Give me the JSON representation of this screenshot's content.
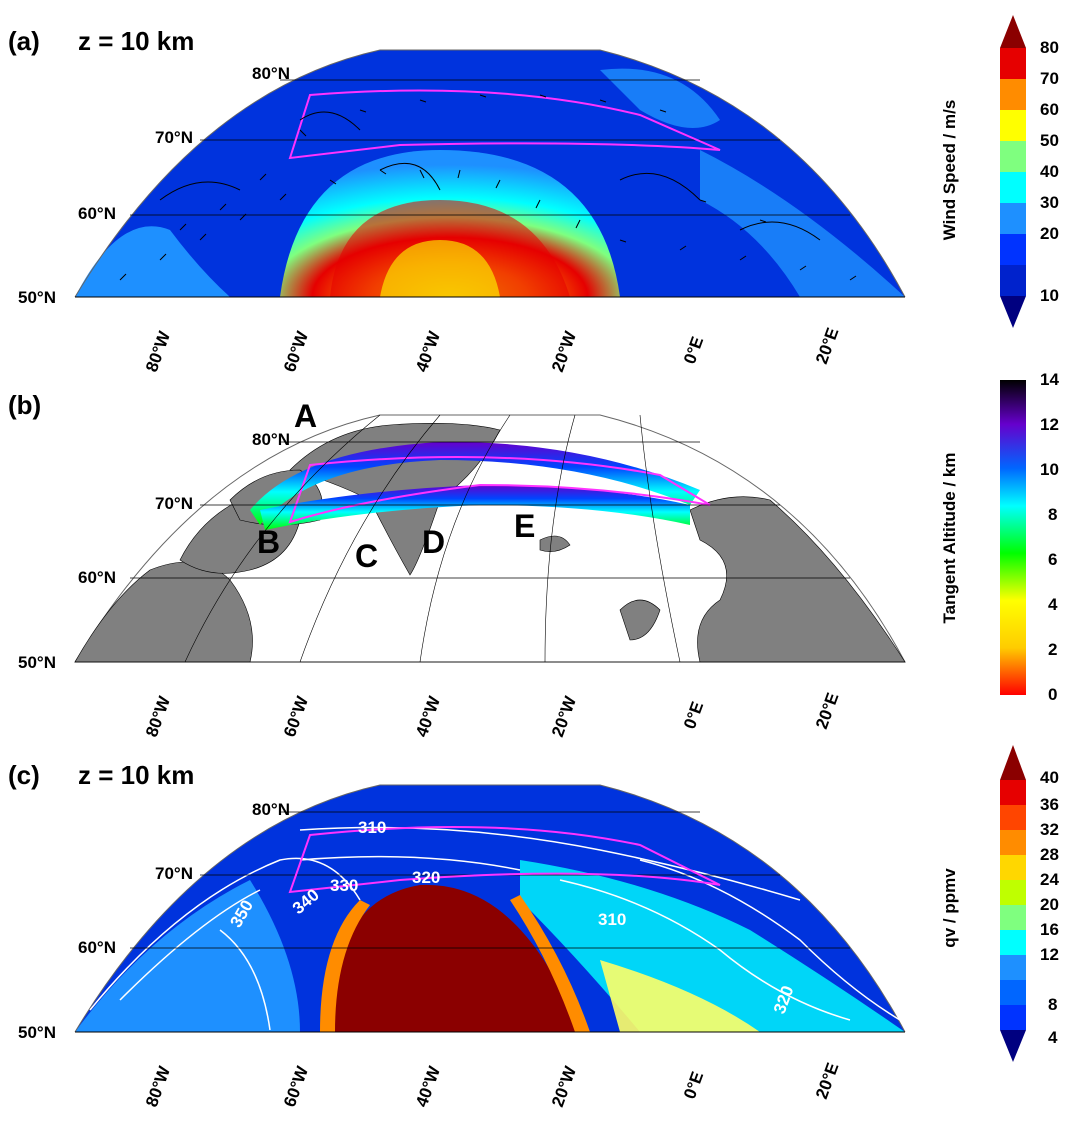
{
  "panels": [
    {
      "label": "(a)",
      "title": "z = 10 km",
      "lat_labels": [
        "80°N",
        "70°N",
        "60°N",
        "50°N"
      ],
      "lon_labels": [
        "80°W",
        "60°W",
        "40°W",
        "20°W",
        "0°E",
        "20°E"
      ],
      "colorbar": {
        "title": "Wind Speed / m/s",
        "ticks": [
          "80",
          "70",
          "60",
          "50",
          "40",
          "30",
          "20",
          "10"
        ],
        "colors": [
          "#8b0000",
          "#e60000",
          "#ff8c00",
          "#ffff00",
          "#7fff7f",
          "#00ffff",
          "#1e90ff",
          "#0033ff",
          "#000080"
        ]
      }
    },
    {
      "label": "(b)",
      "title": "",
      "lat_labels": [
        "80°N",
        "70°N",
        "60°N",
        "50°N"
      ],
      "lon_labels": [
        "80°W",
        "60°W",
        "40°W",
        "20°W",
        "0°E",
        "20°E"
      ],
      "markers": [
        "A",
        "B",
        "C",
        "D",
        "E"
      ],
      "colorbar": {
        "title": "Tangent Altitude / km",
        "ticks": [
          "14",
          "12",
          "10",
          "8",
          "6",
          "4",
          "2",
          "0"
        ]
      }
    },
    {
      "label": "(c)",
      "title": "z = 10 km",
      "lat_labels": [
        "80°N",
        "70°N",
        "60°N",
        "50°N"
      ],
      "lon_labels": [
        "80°W",
        "60°W",
        "40°W",
        "20°W",
        "0°E",
        "20°E"
      ],
      "contour_labels": [
        "310",
        "330",
        "320",
        "350",
        "340",
        "310",
        "320"
      ],
      "colorbar": {
        "title": "qv / ppmv",
        "ticks": [
          "40",
          "36",
          "32",
          "28",
          "24",
          "20",
          "16",
          "12",
          "8",
          "4"
        ],
        "colors": [
          "#8b0000",
          "#e60000",
          "#ff4500",
          "#ff8c00",
          "#ffd700",
          "#bfff00",
          "#7fff7f",
          "#00ffff",
          "#1e90ff",
          "#0033ff",
          "#000080"
        ]
      }
    }
  ]
}
